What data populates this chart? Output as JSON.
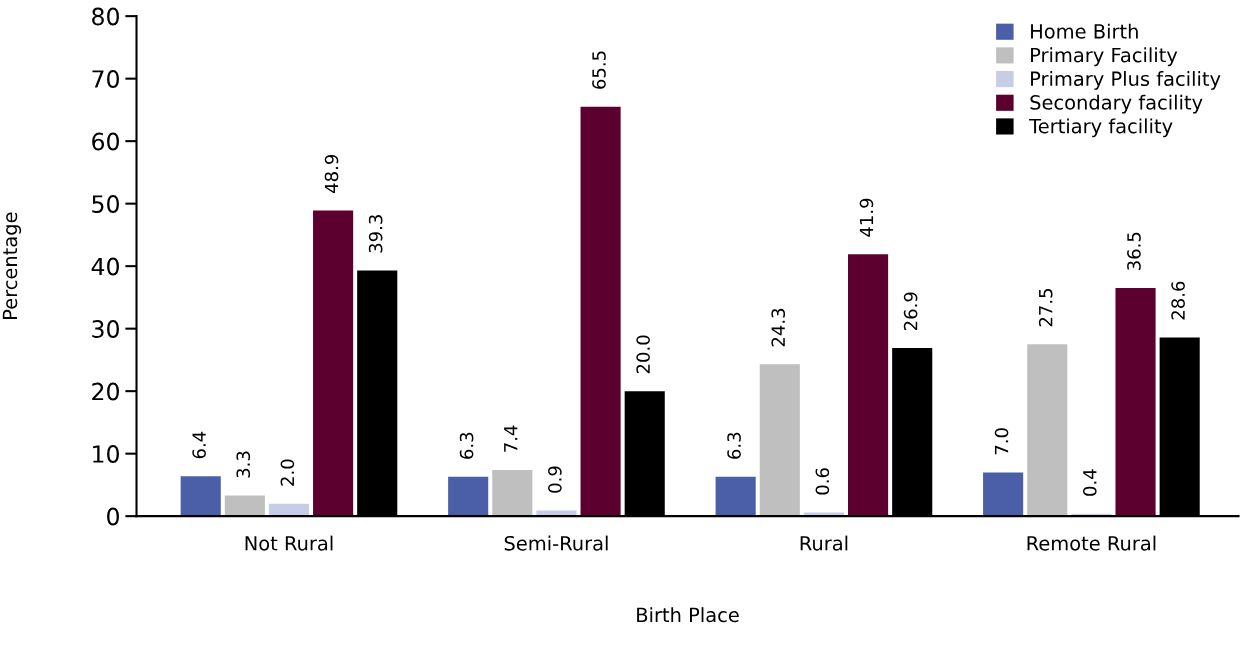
{
  "chart_data": {
    "type": "bar",
    "xlabel": "Birth Place",
    "ylabel": "Percentage",
    "categories": [
      "Not Rural",
      "Semi-Rural",
      "Rural",
      "Remote Rural"
    ],
    "series": [
      {
        "name": "Home Birth",
        "color": "#4a5fa8",
        "values": [
          6.4,
          6.3,
          6.3,
          7.0
        ],
        "value_labels": [
          "6.4",
          "6.3",
          "6.3",
          "7.0"
        ]
      },
      {
        "name": "Primary Facility",
        "color": "#bfbfbf",
        "values": [
          3.3,
          7.4,
          24.3,
          27.5
        ],
        "value_labels": [
          "3.3",
          "7.4",
          "24.3",
          "27.5"
        ]
      },
      {
        "name": "Primary Plus facility",
        "color": "#c8cde6",
        "values": [
          2.0,
          0.9,
          0.6,
          0.4
        ],
        "value_labels": [
          "2.0",
          "0.9",
          "0.6",
          "0.4"
        ]
      },
      {
        "name": "Secondary facility",
        "color": "#5c0030",
        "values": [
          48.9,
          65.5,
          41.9,
          36.5
        ],
        "value_labels": [
          "48.9",
          "65.5",
          "41.9",
          "36.5"
        ]
      },
      {
        "name": "Tertiary facility",
        "color": "#000000",
        "values": [
          39.3,
          20.0,
          26.9,
          28.6
        ],
        "value_labels": [
          "39.3",
          "20.0",
          "26.9",
          "28.6"
        ]
      }
    ],
    "ylim": [
      0,
      80
    ],
    "yticks": [
      0,
      10,
      20,
      30,
      40,
      50,
      60,
      70,
      80
    ],
    "grid": false,
    "legend": "top right"
  }
}
